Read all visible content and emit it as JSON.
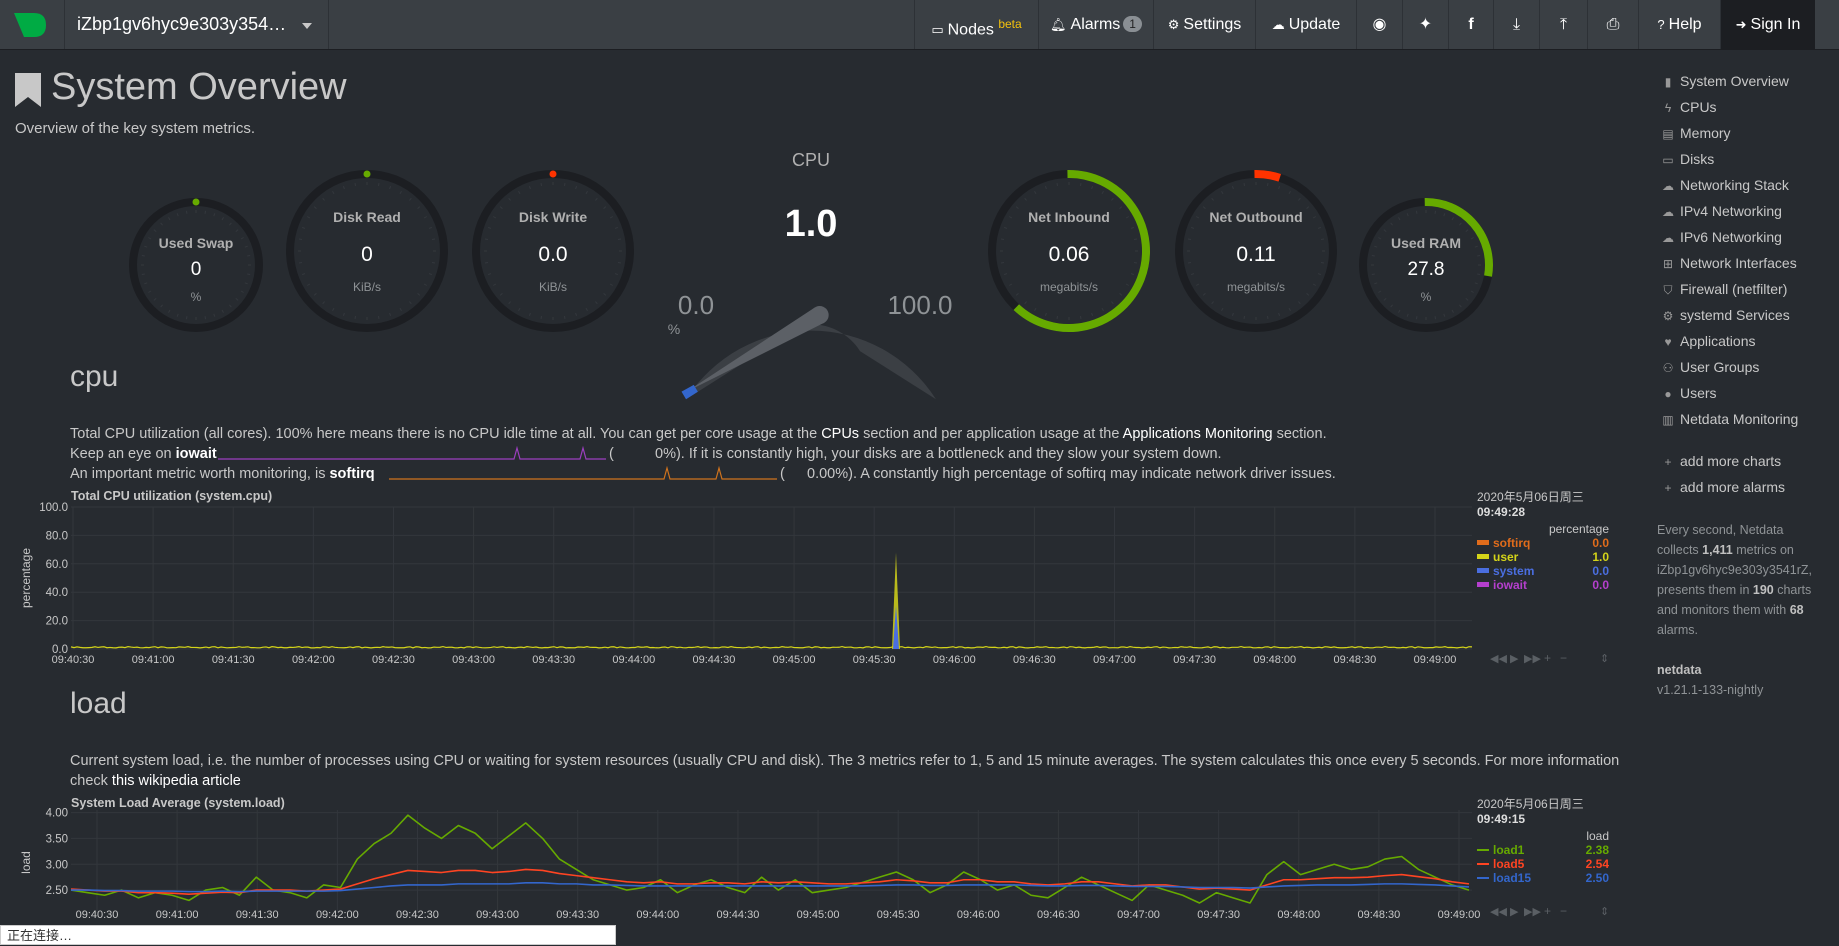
{
  "topbar": {
    "hostname": "iZbp1gv6hyc9e303y354…",
    "nodes_label": "Nodes",
    "nodes_beta": "beta",
    "alarms_label": "Alarms",
    "alarms_count": "1",
    "settings_label": "Settings",
    "update_label": "Update",
    "help_label": "Help",
    "signin_label": "Sign In"
  },
  "page": {
    "title": "System Overview",
    "subtitle": "Overview of the key system metrics."
  },
  "gauges": {
    "swap": {
      "label": "Used Swap",
      "value": "0",
      "unit": "%",
      "level": 0
    },
    "disk_read": {
      "label": "Disk Read",
      "value": "0",
      "unit": "KiB/s",
      "level": 0
    },
    "disk_write": {
      "label": "Disk Write",
      "value": "0.0",
      "unit": "KiB/s",
      "level": 0
    },
    "cpu": {
      "label": "CPU",
      "value": "1.0",
      "min": "0.0",
      "max": "100.0",
      "unit": "%",
      "level": 0.01
    },
    "net_in": {
      "label": "Net Inbound",
      "value": "0.06",
      "unit": "megabits/s",
      "level": 0.62
    },
    "net_out": {
      "label": "Net Outbound",
      "value": "0.11",
      "unit": "megabits/s",
      "level": 0.05
    },
    "ram": {
      "label": "Used RAM",
      "value": "27.8",
      "unit": "%",
      "level": 0.278
    }
  },
  "cpu_section": {
    "heading": "cpu",
    "desc1_a": "Total CPU utilization (all cores). 100% here means there is no CPU idle time at all. You can get per core usage at the ",
    "desc1_link1": "CPUs",
    "desc1_b": " section and per application usage at the ",
    "desc1_link2": "Applications Monitoring",
    "desc1_c": " section.",
    "desc2_a": "Keep an eye on ",
    "desc2_b": "iowait",
    "desc2_paren_open": "(",
    "desc2_c": "0%). If it is constantly high, your disks are a bottleneck and they slow your system down.",
    "desc3_a": "An important metric worth monitoring, is ",
    "desc3_b": "softirq",
    "desc3_paren_open": "(",
    "desc3_c": "0.00%). A constantly high percentage of softirq may indicate network driver issues."
  },
  "load_section": {
    "heading": "load",
    "desc1": "Current system load, i.e. the number of processes using CPU or waiting for system resources (usually CPU and disk). The 3 metrics refer to 1, 5 and 15 minute averages. The system calculates this once every 5 seconds. For more information",
    "desc2_a": "check ",
    "desc2_link": "this wikipedia article"
  },
  "cpu_chart": {
    "title": "Total CPU utilization (system.cpu)",
    "legend_date": "2020年5月06日周三",
    "legend_time": "09:49:28",
    "legend_unit": "percentage"
  },
  "load_chart": {
    "title": "System Load Average (system.load)",
    "legend_date": "2020年5月06日周三",
    "legend_time": "09:49:15",
    "legend_unit": "load"
  },
  "chart_data": [
    {
      "type": "area",
      "title": "Total CPU utilization (system.cpu)",
      "ylabel": "percentage",
      "ylim": [
        0,
        100
      ],
      "yticks": [
        "100.0",
        "80.0",
        "60.0",
        "40.0",
        "20.0",
        "0.0"
      ],
      "xticks": [
        "09:40:30",
        "09:41:00",
        "09:41:30",
        "09:42:00",
        "09:42:30",
        "09:43:00",
        "09:43:30",
        "09:44:00",
        "09:44:30",
        "09:45:00",
        "09:45:30",
        "09:46:00",
        "09:46:30",
        "09:47:00",
        "09:47:30",
        "09:48:00",
        "09:48:30",
        "09:49:00"
      ],
      "series": [
        {
          "name": "softirq",
          "color": "#e06c1b",
          "current": "0.0"
        },
        {
          "name": "user",
          "color": "#d4d419",
          "current": "1.0"
        },
        {
          "name": "system",
          "color": "#4a6ee0",
          "current": "0.0"
        },
        {
          "name": "iowait",
          "color": "#b53fce",
          "current": "0.0"
        }
      ],
      "spike": {
        "time": "09:45:50",
        "value": 68
      }
    },
    {
      "type": "line",
      "title": "System Load Average (system.load)",
      "ylabel": "load",
      "ylim": [
        2.25,
        4.05
      ],
      "yticks": [
        "4.00",
        "3.50",
        "3.00",
        "2.50"
      ],
      "xticks": [
        "09:40:30",
        "09:41:00",
        "09:41:30",
        "09:42:00",
        "09:42:30",
        "09:43:00",
        "09:43:30",
        "09:44:00",
        "09:44:30",
        "09:45:00",
        "09:45:30",
        "09:46:00",
        "09:46:30",
        "09:47:00",
        "09:47:30",
        "09:48:00",
        "09:48:30",
        "09:49:00"
      ],
      "series": [
        {
          "name": "load1",
          "color": "#66aa00",
          "current": "2.38",
          "values": [
            2.5,
            2.45,
            2.4,
            2.5,
            2.35,
            2.45,
            2.4,
            2.3,
            2.5,
            2.55,
            2.4,
            2.75,
            2.5,
            2.45,
            2.35,
            2.6,
            2.55,
            3.1,
            3.4,
            3.6,
            3.95,
            3.7,
            3.5,
            3.75,
            3.6,
            3.3,
            3.55,
            3.8,
            3.5,
            3.1,
            2.9,
            2.7,
            2.6,
            2.5,
            2.55,
            2.7,
            2.45,
            2.6,
            2.7,
            2.55,
            2.45,
            2.75,
            2.5,
            2.7,
            2.45,
            2.5,
            2.55,
            2.65,
            2.75,
            2.85,
            2.7,
            2.45,
            2.6,
            2.85,
            2.7,
            2.5,
            2.6,
            2.4,
            2.35,
            2.55,
            2.75,
            2.6,
            2.45,
            2.3,
            2.6,
            2.5,
            2.4,
            2.25,
            2.45,
            2.35,
            2.25,
            2.8,
            3.05,
            2.8,
            2.9,
            3.0,
            2.9,
            2.95,
            3.1,
            3.15,
            2.9,
            2.75,
            2.6,
            2.5
          ]
        },
        {
          "name": "load5",
          "color": "#ff4422",
          "current": "2.54",
          "values": [
            2.52,
            2.5,
            2.48,
            2.48,
            2.45,
            2.45,
            2.44,
            2.42,
            2.44,
            2.46,
            2.45,
            2.5,
            2.5,
            2.5,
            2.48,
            2.5,
            2.52,
            2.62,
            2.72,
            2.8,
            2.88,
            2.86,
            2.84,
            2.88,
            2.88,
            2.84,
            2.86,
            2.9,
            2.88,
            2.82,
            2.78,
            2.74,
            2.7,
            2.66,
            2.64,
            2.66,
            2.62,
            2.62,
            2.64,
            2.64,
            2.62,
            2.66,
            2.64,
            2.66,
            2.64,
            2.62,
            2.62,
            2.64,
            2.66,
            2.7,
            2.68,
            2.64,
            2.64,
            2.7,
            2.7,
            2.66,
            2.66,
            2.62,
            2.6,
            2.62,
            2.66,
            2.66,
            2.62,
            2.58,
            2.6,
            2.6,
            2.56,
            2.52,
            2.54,
            2.52,
            2.5,
            2.6,
            2.7,
            2.7,
            2.72,
            2.74,
            2.74,
            2.75,
            2.78,
            2.8,
            2.76,
            2.72,
            2.66,
            2.62
          ]
        },
        {
          "name": "load15",
          "color": "#3366cc",
          "current": "2.50",
          "values": [
            2.5,
            2.5,
            2.49,
            2.49,
            2.48,
            2.48,
            2.48,
            2.47,
            2.47,
            2.48,
            2.47,
            2.48,
            2.48,
            2.48,
            2.48,
            2.48,
            2.49,
            2.52,
            2.55,
            2.58,
            2.6,
            2.6,
            2.6,
            2.62,
            2.62,
            2.62,
            2.62,
            2.64,
            2.64,
            2.62,
            2.62,
            2.6,
            2.6,
            2.59,
            2.58,
            2.58,
            2.58,
            2.58,
            2.58,
            2.58,
            2.58,
            2.58,
            2.58,
            2.58,
            2.58,
            2.58,
            2.58,
            2.58,
            2.59,
            2.6,
            2.6,
            2.59,
            2.59,
            2.6,
            2.6,
            2.6,
            2.6,
            2.59,
            2.58,
            2.58,
            2.59,
            2.59,
            2.58,
            2.57,
            2.57,
            2.57,
            2.56,
            2.55,
            2.55,
            2.55,
            2.54,
            2.56,
            2.58,
            2.59,
            2.6,
            2.6,
            2.6,
            2.61,
            2.62,
            2.62,
            2.61,
            2.6,
            2.58,
            2.56
          ]
        }
      ]
    }
  ],
  "sidebar": {
    "items": [
      {
        "label": "System Overview",
        "icon": "bookmark-icon"
      },
      {
        "label": "CPUs",
        "icon": "bolt-icon"
      },
      {
        "label": "Memory",
        "icon": "memory-icon"
      },
      {
        "label": "Disks",
        "icon": "hdd-icon"
      },
      {
        "label": "Networking Stack",
        "icon": "cloud-icon"
      },
      {
        "label": "IPv4 Networking",
        "icon": "cloud-icon"
      },
      {
        "label": "IPv6 Networking",
        "icon": "cloud-icon"
      },
      {
        "label": "Network Interfaces",
        "icon": "sitemap-icon"
      },
      {
        "label": "Firewall (netfilter)",
        "icon": "shield-icon"
      },
      {
        "label": "systemd Services",
        "icon": "cogs-icon"
      },
      {
        "label": "Applications",
        "icon": "heartbeat-icon"
      },
      {
        "label": "User Groups",
        "icon": "users-icon"
      },
      {
        "label": "Users",
        "icon": "user-icon"
      },
      {
        "label": "Netdata Monitoring",
        "icon": "chart-icon"
      }
    ],
    "add_charts": "add more charts",
    "add_alarms": "add more alarms",
    "info_a": "Every second, Netdata collects ",
    "info_metrics": "1,411",
    "info_b": " metrics on iZbp1gv6hyc9e303y3541rZ, presents them in ",
    "info_charts": "190",
    "info_c": " charts and monitors them with ",
    "info_alarms": "68",
    "info_d": " alarms.",
    "brand": "netdata",
    "version": "v1.21.1-133-nightly"
  },
  "status_bar": "正在连接…"
}
